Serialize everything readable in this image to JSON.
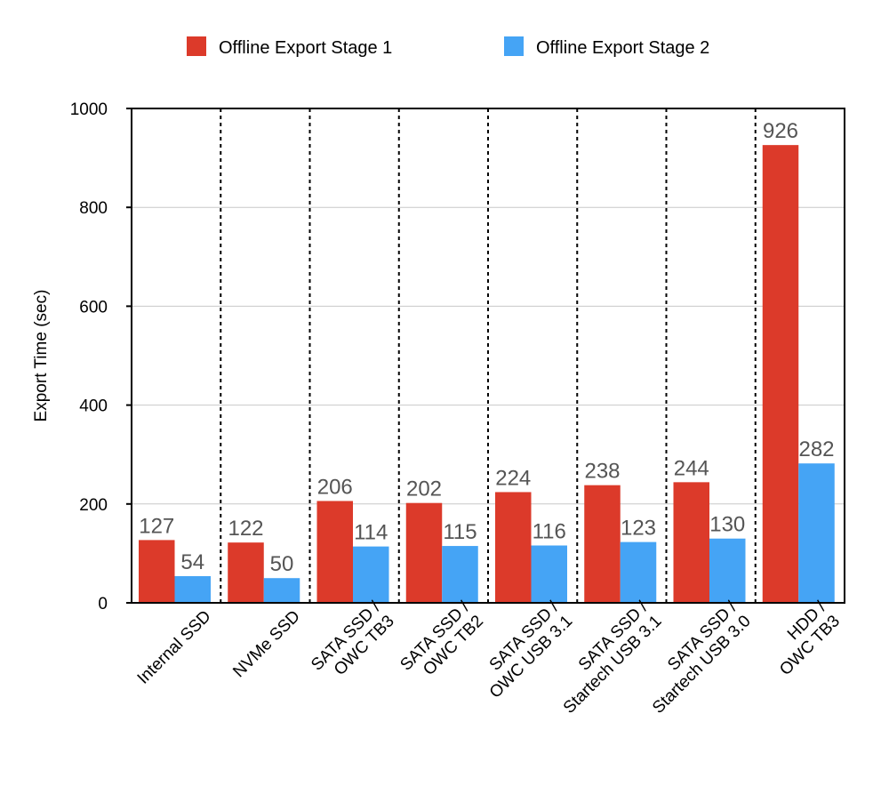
{
  "chart_data": {
    "type": "bar",
    "title": "",
    "xlabel": "",
    "ylabel": "Export Time (sec)",
    "ylim": [
      0,
      1000
    ],
    "yticks": [
      0,
      200,
      400,
      600,
      800,
      1000
    ],
    "grid": true,
    "legend_position": "top-center",
    "categories": [
      [
        "Internal SSD"
      ],
      [
        "NVMe SSD"
      ],
      [
        "SATA SSD /",
        "OWC TB3"
      ],
      [
        "SATA SSD /",
        "OWC TB2"
      ],
      [
        "SATA SSD /",
        "OWC USB 3.1"
      ],
      [
        "SATA SSD /",
        "Startech USB 3.1"
      ],
      [
        "SATA SSD /",
        "Startech USB 3.0"
      ],
      [
        "HDD /",
        "OWC TB3"
      ]
    ],
    "series": [
      {
        "name": "Offline Export Stage 1",
        "color": "#dc3a2a",
        "values": [
          127,
          122,
          206,
          202,
          224,
          238,
          244,
          926
        ]
      },
      {
        "name": "Offline Export Stage 2",
        "color": "#45a4f5",
        "values": [
          54,
          50,
          114,
          115,
          116,
          123,
          130,
          282
        ]
      }
    ],
    "data_label_color": "#555555"
  }
}
